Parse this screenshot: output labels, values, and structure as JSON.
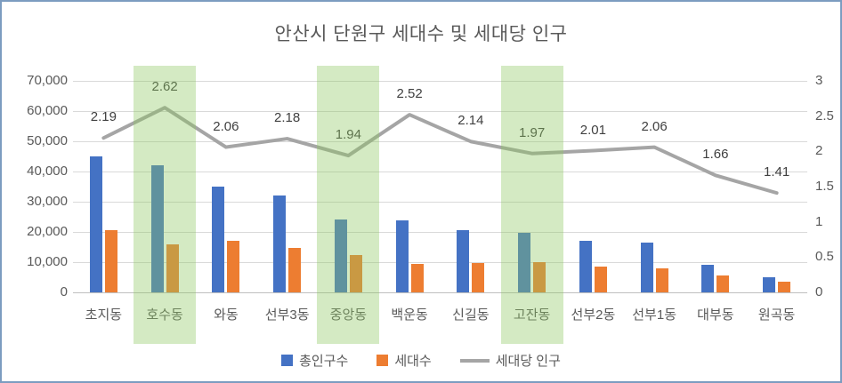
{
  "chart_data": {
    "type": "bar",
    "subtype": "combo-bar-line",
    "title": "안산시 단원구 세대수 및 세대당 인구",
    "categories": [
      "초지동",
      "호수동",
      "와동",
      "선부3동",
      "중앙동",
      "백운동",
      "신길동",
      "고잔동",
      "선부2동",
      "선부1동",
      "대부동",
      "원곡동"
    ],
    "series": [
      {
        "name": "총인구수",
        "type": "bar",
        "axis": "left",
        "color": "#4472c4",
        "values": [
          45000,
          42000,
          35000,
          32000,
          24100,
          23900,
          20600,
          19700,
          17100,
          16500,
          9100,
          5000
        ]
      },
      {
        "name": "세대수",
        "type": "bar",
        "axis": "left",
        "color": "#ed7d31",
        "values": [
          20600,
          16000,
          17100,
          14700,
          12400,
          9500,
          9600,
          10000,
          8500,
          8000,
          5500,
          3550
        ]
      },
      {
        "name": "세대당 인구",
        "type": "line",
        "axis": "right",
        "color": "#a5a5a5",
        "values": [
          2.19,
          2.62,
          2.06,
          2.18,
          1.94,
          2.52,
          2.14,
          1.97,
          2.01,
          2.06,
          1.66,
          1.41
        ],
        "data_labels": [
          "2.19",
          "2.62",
          "2.06",
          "2.18",
          "1.94",
          "2.52",
          "2.14",
          "1.97",
          "2.01",
          "2.06",
          "1.66",
          "1.41"
        ]
      }
    ],
    "left_axis": {
      "min": 0,
      "max": 70000,
      "step": 10000,
      "tick_labels": [
        "0",
        "10,000",
        "20,000",
        "30,000",
        "40,000",
        "50,000",
        "60,000",
        "70,000"
      ]
    },
    "right_axis": {
      "min": 0,
      "max": 3,
      "step": 0.5,
      "tick_labels": [
        "0",
        "0.5",
        "1",
        "1.5",
        "2",
        "2.5",
        "3"
      ]
    },
    "highlighted_categories": [
      "호수동",
      "중앙동",
      "고잔동"
    ],
    "highlight_color": "rgba(141,200,96,0.38)",
    "gridline_color": "#d9d9d9",
    "axis_text_color": "#595959",
    "title_color": "#595959",
    "legend_position": "bottom",
    "grid": true
  }
}
